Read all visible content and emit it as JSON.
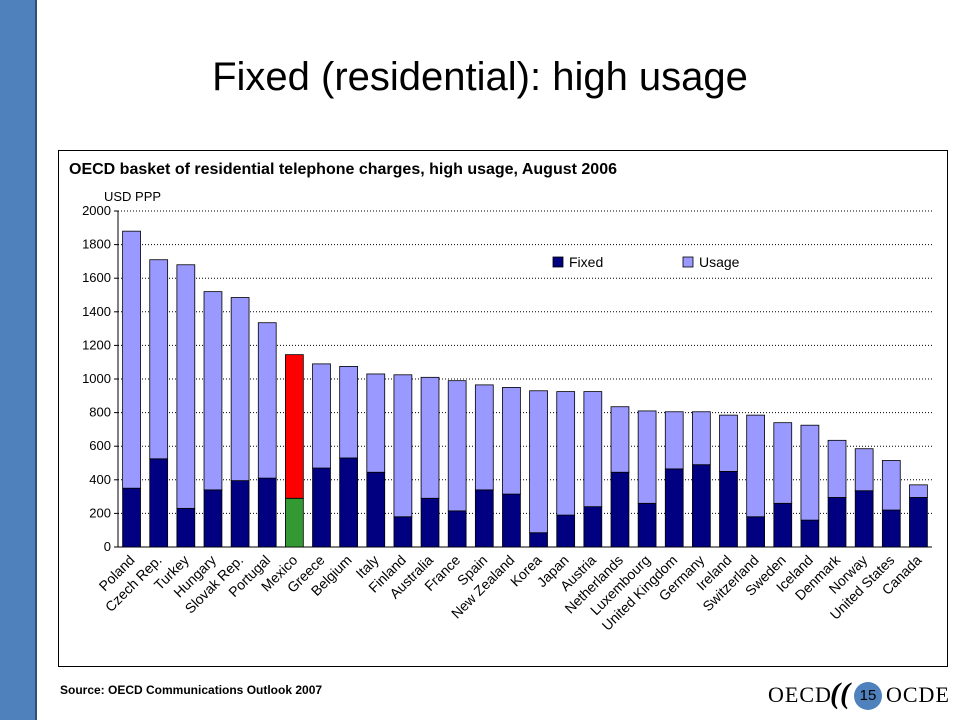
{
  "slide": {
    "title": "Fixed (residential): high usage",
    "source": "Source: OECD Communications Outlook 2007",
    "page_number": "15",
    "logo_left": "OECD",
    "logo_right": "OCDE"
  },
  "chart_data": {
    "type": "bar",
    "stacked": true,
    "title": "OECD basket of residential telephone charges, high usage, August 2006",
    "ylabel": "USD PPP",
    "ylim": [
      0,
      2000
    ],
    "yticks": [
      0,
      200,
      400,
      600,
      800,
      1000,
      1200,
      1400,
      1600,
      1800,
      2000
    ],
    "grid": true,
    "legend": "top-right",
    "categories": [
      "Poland",
      "Czech Rep.",
      "Turkey",
      "Hungary",
      "Slovak Rep.",
      "Portugal",
      "Mexico",
      "Greece",
      "Belgium",
      "Italy",
      "Finland",
      "Australia",
      "France",
      "Spain",
      "New Zealand",
      "Korea",
      "Japan",
      "Austria",
      "Netherlands",
      "Luxembourg",
      "United Kingdom",
      "Germany",
      "Ireland",
      "Switzerland",
      "Sweden",
      "Iceland",
      "Denmark",
      "Norway",
      "United States",
      "Canada"
    ],
    "series": [
      {
        "name": "Fixed",
        "color": "#000080",
        "values": [
          350,
          525,
          230,
          340,
          395,
          410,
          290,
          470,
          530,
          445,
          180,
          290,
          215,
          340,
          315,
          85,
          190,
          240,
          445,
          260,
          465,
          490,
          450,
          180,
          260,
          160,
          295,
          335,
          220,
          295
        ]
      },
      {
        "name": "Usage",
        "color": "#9999ff",
        "values": [
          1530,
          1185,
          1450,
          1180,
          1090,
          925,
          855,
          620,
          545,
          585,
          845,
          720,
          775,
          625,
          635,
          845,
          735,
          685,
          390,
          550,
          340,
          315,
          335,
          605,
          480,
          565,
          340,
          250,
          295,
          75
        ]
      }
    ],
    "highlight": {
      "category": "Mexico",
      "fixed_color": "#339933",
      "usage_color": "#ff0000"
    }
  }
}
